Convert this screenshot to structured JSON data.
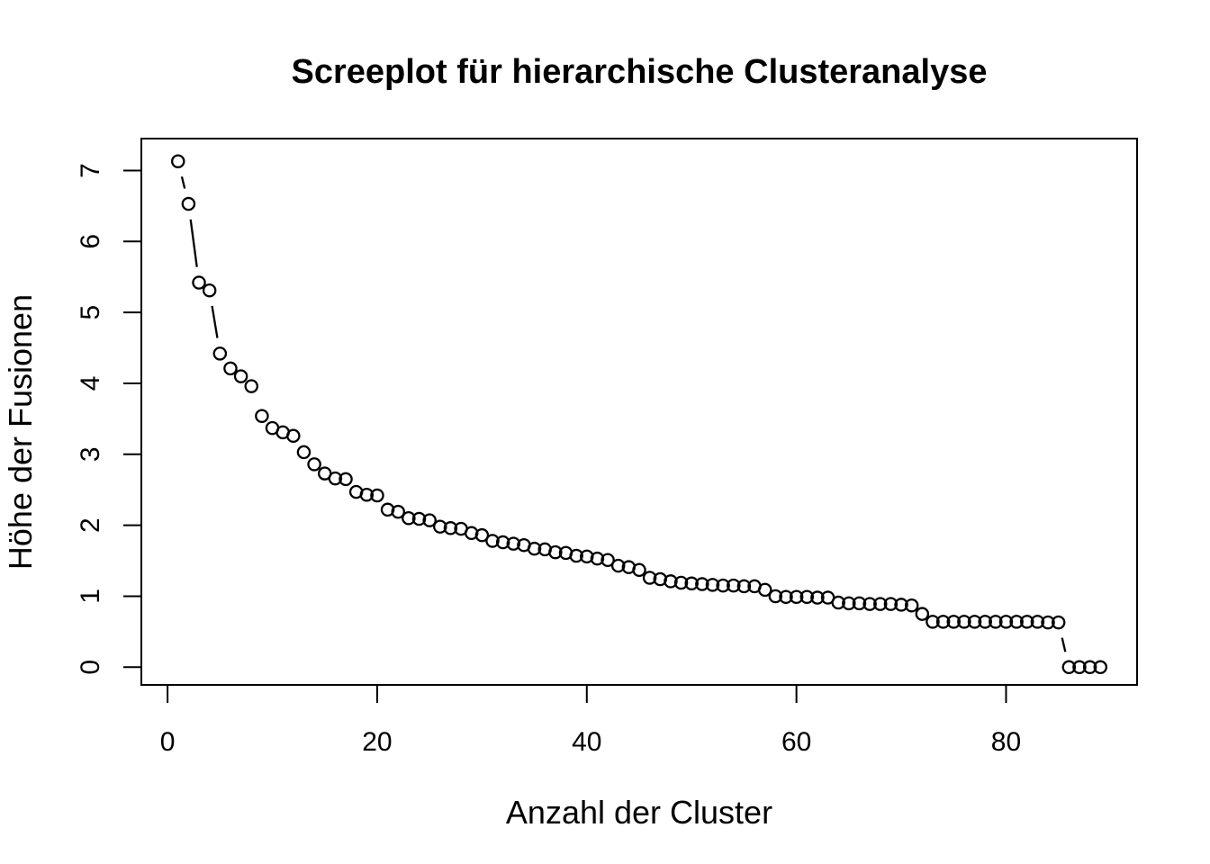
{
  "chart_data": {
    "type": "scatter",
    "title": "Screeplot für hierarchische Clusteranalyse",
    "xlabel": "Anzahl der Cluster",
    "ylabel": "Höhe der Fusionen",
    "x": [
      1,
      2,
      3,
      4,
      5,
      6,
      7,
      8,
      9,
      10,
      11,
      12,
      13,
      14,
      15,
      16,
      17,
      18,
      19,
      20,
      21,
      22,
      23,
      24,
      25,
      26,
      27,
      28,
      29,
      30,
      31,
      32,
      33,
      34,
      35,
      36,
      37,
      38,
      39,
      40,
      41,
      42,
      43,
      44,
      45,
      46,
      47,
      48,
      49,
      50,
      51,
      52,
      53,
      54,
      55,
      56,
      57,
      58,
      59,
      60,
      61,
      62,
      63,
      64,
      65,
      66,
      67,
      68,
      69,
      70,
      71,
      72,
      73,
      74,
      75,
      76,
      77,
      78,
      79,
      80,
      81,
      82,
      83,
      84,
      85,
      86,
      87,
      88,
      89
    ],
    "heights": [
      7.13,
      6.53,
      5.42,
      5.31,
      4.42,
      4.21,
      4.1,
      3.96,
      3.54,
      3.37,
      3.31,
      3.26,
      3.03,
      2.86,
      2.73,
      2.66,
      2.65,
      2.47,
      2.43,
      2.42,
      2.22,
      2.19,
      2.1,
      2.09,
      2.07,
      1.98,
      1.96,
      1.95,
      1.89,
      1.86,
      1.78,
      1.76,
      1.74,
      1.72,
      1.67,
      1.66,
      1.62,
      1.61,
      1.57,
      1.56,
      1.53,
      1.51,
      1.43,
      1.41,
      1.37,
      1.26,
      1.24,
      1.21,
      1.19,
      1.18,
      1.17,
      1.16,
      1.15,
      1.15,
      1.14,
      1.14,
      1.09,
      1.0,
      0.99,
      0.99,
      0.99,
      0.98,
      0.98,
      0.91,
      0.9,
      0.9,
      0.89,
      0.89,
      0.89,
      0.88,
      0.87,
      0.75,
      0.64,
      0.64,
      0.64,
      0.64,
      0.64,
      0.64,
      0.64,
      0.64,
      0.64,
      0.64,
      0.64,
      0.63,
      0.63,
      0.0,
      0.0,
      0.0,
      0.0
    ],
    "xticks": [
      0,
      20,
      40,
      60,
      80
    ],
    "yticks": [
      0,
      1,
      2,
      3,
      4,
      5,
      6,
      7
    ],
    "xlim": [
      -2.5,
      92.5
    ],
    "ylim": [
      -0.25,
      7.45
    ],
    "point_style": "open-circle",
    "line_style": "segments-with-gaps-around-points",
    "legend": "none",
    "grid": "off",
    "color": "#000000",
    "background": "#ffffff"
  }
}
